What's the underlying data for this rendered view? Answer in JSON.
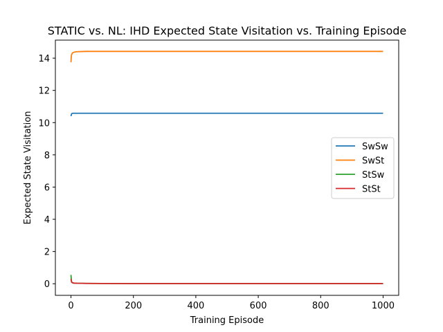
{
  "chart_data": {
    "type": "line",
    "title": "STATIC vs. NL: IHD Expected State Visitation vs. Training Episode",
    "xlabel": "Training Episode",
    "ylabel": "Expected State Visitation",
    "xlim": [
      -50,
      1050
    ],
    "ylim": [
      -0.72,
      15.12
    ],
    "xticks": [
      0,
      200,
      400,
      600,
      800,
      1000
    ],
    "yticks": [
      0,
      2,
      4,
      6,
      8,
      10,
      12,
      14
    ],
    "grid": false,
    "legend_position": "center-right",
    "series": [
      {
        "name": "SwSw",
        "color": "#1f77b4",
        "x": [
          0,
          2,
          5,
          10,
          20,
          50,
          100,
          200,
          400,
          600,
          800,
          1000
        ],
        "y": [
          10.4,
          10.55,
          10.58,
          10.58,
          10.58,
          10.58,
          10.58,
          10.58,
          10.58,
          10.58,
          10.58,
          10.58
        ]
      },
      {
        "name": "SwSt",
        "color": "#ff7f0e",
        "x": [
          0,
          1,
          2,
          4,
          6,
          10,
          15,
          20,
          30,
          50,
          100,
          200,
          400,
          600,
          800,
          1000
        ],
        "y": [
          13.75,
          14.1,
          14.22,
          14.3,
          14.34,
          14.37,
          14.39,
          14.4,
          14.41,
          14.42,
          14.42,
          14.42,
          14.42,
          14.42,
          14.42,
          14.42
        ]
      },
      {
        "name": "StSw",
        "color": "#2ca02c",
        "x": [
          0,
          1,
          2,
          4,
          6,
          10,
          20,
          50,
          100,
          200,
          400,
          600,
          800,
          1000
        ],
        "y": [
          0.55,
          0.25,
          0.12,
          0.07,
          0.05,
          0.04,
          0.03,
          0.02,
          0.015,
          0.01,
          0.01,
          0.01,
          0.01,
          0.01
        ]
      },
      {
        "name": "StSt",
        "color": "#d62728",
        "x": [
          0,
          1,
          2,
          4,
          6,
          10,
          20,
          50,
          100,
          200,
          400,
          600,
          800,
          1000
        ],
        "y": [
          0.3,
          0.18,
          0.1,
          0.07,
          0.05,
          0.04,
          0.03,
          0.02,
          0.015,
          0.01,
          0.01,
          0.01,
          0.01,
          0.01
        ]
      }
    ]
  }
}
